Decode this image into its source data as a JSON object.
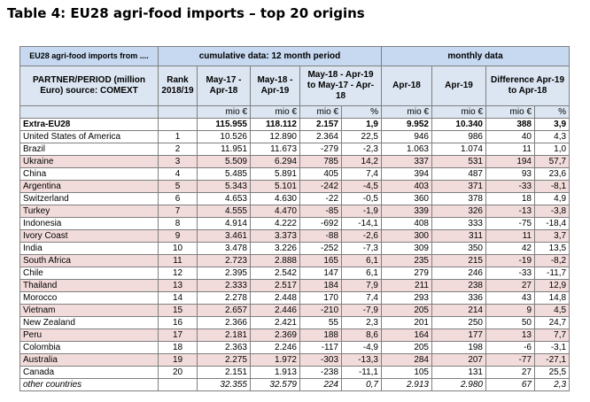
{
  "header": {
    "title": "Table 4: EU28 agri-food imports – top 20 origins"
  },
  "table": {
    "group_headers": [
      "EU28 agri-food imports from ....",
      "cumulative data: 12 month period",
      "monthly data"
    ],
    "column_headers": [
      "PARTNER/PERIOD (million Euro) source: COMEXT",
      "Rank 2018/19",
      "May-17 - Apr-18",
      "May-18 - Apr-19",
      "May-18 - Apr-19 to May-17 - Apr-18",
      "Apr-18",
      "Apr-19",
      "Difference Apr-19 to Apr-18"
    ],
    "units": [
      "mio €",
      "mio €",
      "mio €",
      "%",
      "mio €",
      "mio €",
      "mio €",
      "%"
    ],
    "total": {
      "name": "Extra-EU28",
      "values": [
        "115.955",
        "118.112",
        "2.157",
        "1,9",
        "9.952",
        "10.340",
        "388",
        "3,9"
      ]
    },
    "rows": [
      {
        "name": "United States of America",
        "rank": "1",
        "values": [
          "10.526",
          "12.890",
          "2.364",
          "22,5",
          "946",
          "986",
          "40",
          "4,3"
        ]
      },
      {
        "name": "Brazil",
        "rank": "2",
        "values": [
          "11.951",
          "11.673",
          "-279",
          "-2,3",
          "1.063",
          "1.074",
          "11",
          "1,0"
        ]
      },
      {
        "name": "Ukraine",
        "rank": "3",
        "values": [
          "5.509",
          "6.294",
          "785",
          "14,2",
          "337",
          "531",
          "194",
          "57,7"
        ]
      },
      {
        "name": "China",
        "rank": "4",
        "values": [
          "5.485",
          "5.891",
          "405",
          "7,4",
          "394",
          "487",
          "93",
          "23,6"
        ]
      },
      {
        "name": "Argentina",
        "rank": "5",
        "values": [
          "5.343",
          "5.101",
          "-242",
          "-4,5",
          "403",
          "371",
          "-33",
          "-8,1"
        ]
      },
      {
        "name": "Switzerland",
        "rank": "6",
        "values": [
          "4.653",
          "4.630",
          "-22",
          "-0,5",
          "360",
          "378",
          "18",
          "4,9"
        ]
      },
      {
        "name": "Turkey",
        "rank": "7",
        "values": [
          "4.555",
          "4.470",
          "-85",
          "-1,9",
          "339",
          "326",
          "-13",
          "-3,8"
        ]
      },
      {
        "name": "Indonesia",
        "rank": "8",
        "values": [
          "4.914",
          "4.222",
          "-692",
          "-14,1",
          "408",
          "333",
          "-75",
          "-18,4"
        ]
      },
      {
        "name": "Ivory Coast",
        "rank": "9",
        "values": [
          "3.461",
          "3.373",
          "-88",
          "-2,6",
          "300",
          "311",
          "11",
          "3,7"
        ]
      },
      {
        "name": "India",
        "rank": "10",
        "values": [
          "3.478",
          "3.226",
          "-252",
          "-7,3",
          "309",
          "350",
          "42",
          "13,5"
        ]
      },
      {
        "name": "South Africa",
        "rank": "11",
        "values": [
          "2.723",
          "2.888",
          "165",
          "6,1",
          "235",
          "215",
          "-19",
          "-8,2"
        ]
      },
      {
        "name": "Chile",
        "rank": "12",
        "values": [
          "2.395",
          "2.542",
          "147",
          "6,1",
          "279",
          "246",
          "-33",
          "-11,7"
        ]
      },
      {
        "name": "Thailand",
        "rank": "13",
        "values": [
          "2.333",
          "2.517",
          "184",
          "7,9",
          "211",
          "238",
          "27",
          "12,9"
        ]
      },
      {
        "name": "Morocco",
        "rank": "14",
        "values": [
          "2.278",
          "2.448",
          "170",
          "7,4",
          "293",
          "336",
          "43",
          "14,8"
        ]
      },
      {
        "name": "Vietnam",
        "rank": "15",
        "values": [
          "2.657",
          "2.446",
          "-210",
          "-7,9",
          "205",
          "214",
          "9",
          "4,5"
        ]
      },
      {
        "name": "New Zealand",
        "rank": "16",
        "values": [
          "2.366",
          "2.421",
          "55",
          "2,3",
          "201",
          "250",
          "50",
          "24,7"
        ]
      },
      {
        "name": "Peru",
        "rank": "17",
        "values": [
          "2.181",
          "2.369",
          "188",
          "8,6",
          "164",
          "177",
          "13",
          "7,7"
        ]
      },
      {
        "name": "Colombia",
        "rank": "18",
        "values": [
          "2.363",
          "2.246",
          "-117",
          "-4,9",
          "205",
          "198",
          "-6",
          "-3,1"
        ]
      },
      {
        "name": "Australia",
        "rank": "19",
        "values": [
          "2.275",
          "1.972",
          "-303",
          "-13,3",
          "284",
          "207",
          "-77",
          "-27,1"
        ]
      },
      {
        "name": "Canada",
        "rank": "20",
        "values": [
          "2.151",
          "1.913",
          "-238",
          "-11,1",
          "105",
          "131",
          "27",
          "25,5"
        ]
      }
    ],
    "other": {
      "name": "other countries",
      "values": [
        "32.355",
        "32.579",
        "224",
        "0,7",
        "2.913",
        "2.980",
        "67",
        "2,3"
      ]
    }
  }
}
